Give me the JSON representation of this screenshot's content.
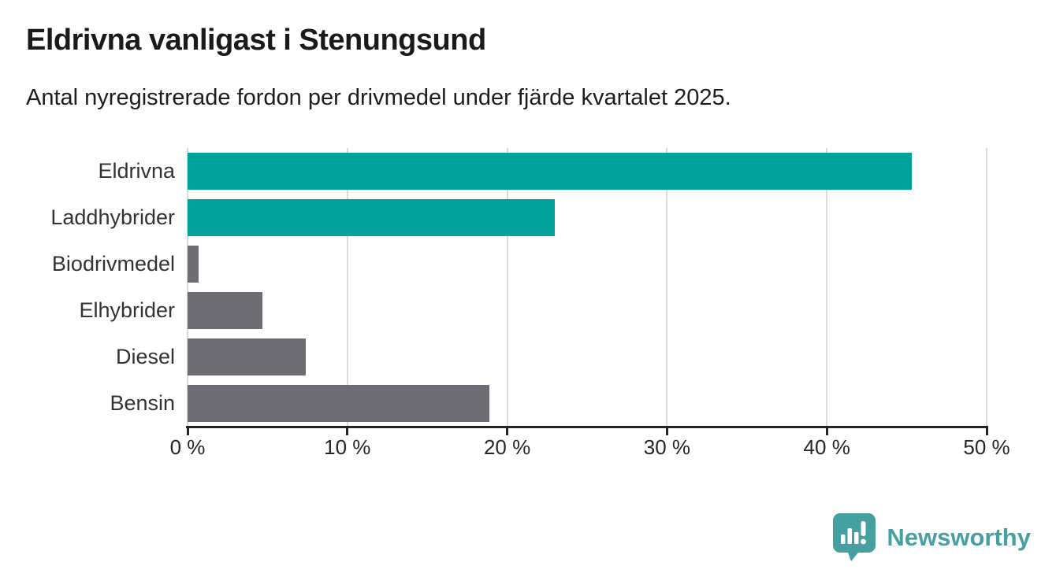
{
  "header": {
    "title": "Eldrivna vanligast i Stenungsund",
    "subtitle": "Antal nyregistrerade fordon per drivmedel under fjärde kvartalet 2025."
  },
  "chart_data": {
    "type": "bar",
    "orientation": "horizontal",
    "title": "Eldrivna vanligast i Stenungsund",
    "subtitle": "Antal nyregistrerade fordon per drivmedel under fjärde kvartalet 2025.",
    "categories": [
      "Eldrivna",
      "Laddhybrider",
      "Biodrivmedel",
      "Elhybrider",
      "Diesel",
      "Bensin"
    ],
    "values": [
      45.3,
      23.0,
      0.7,
      4.7,
      7.4,
      18.9
    ],
    "unit": "%",
    "bar_colors": [
      "#00a39a",
      "#00a39a",
      "#6e6d73",
      "#6e6d73",
      "#6e6d73",
      "#6e6d73"
    ],
    "highlight_color": "#00a39a",
    "default_color": "#6e6d73",
    "xlim": [
      0,
      50
    ],
    "x_ticks": [
      0,
      10,
      20,
      30,
      40,
      50
    ],
    "x_tick_labels": [
      "0 %",
      "10 %",
      "20 %",
      "30 %",
      "40 %",
      "50 %"
    ],
    "grid": true,
    "gridline_color": "#dcdcdc",
    "axis_color": "#262626",
    "legend": "none"
  },
  "branding": {
    "name": "Newsworthy",
    "logo_icon": "newsworthy-speech-bubble-chart-icon",
    "color": "#46a0a2"
  }
}
